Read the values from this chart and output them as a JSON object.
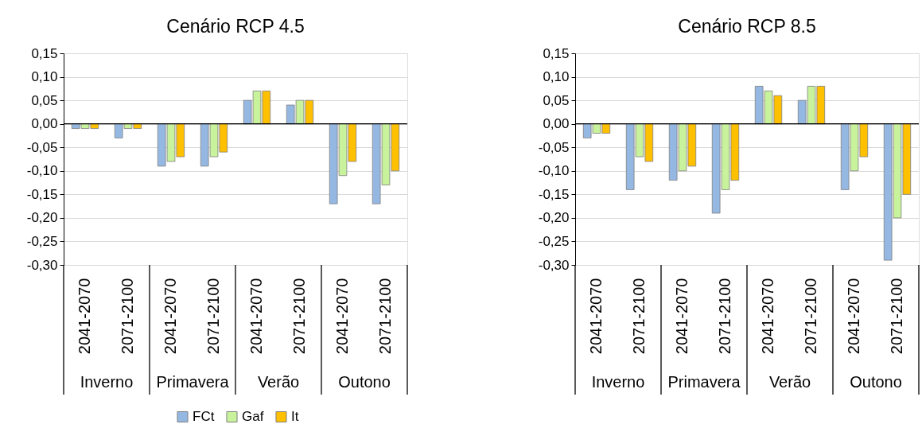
{
  "chart_data": [
    {
      "type": "bar",
      "title": "Cenário RCP 4.5",
      "categories": [
        "2041-2070",
        "2071-2100",
        "2041-2070",
        "2071-2100",
        "2041-2070",
        "2071-2100",
        "2041-2070",
        "2071-2100"
      ],
      "annotations": [
        "Inverno",
        "Primavera",
        "Verão",
        "Outono"
      ],
      "series": [
        {
          "name": "FCt",
          "color": "#95b8e2",
          "values": [
            -0.01,
            -0.03,
            -0.09,
            -0.09,
            0.05,
            0.04,
            -0.17,
            -0.17
          ]
        },
        {
          "name": "Gaf",
          "color": "#c8f29c",
          "values": [
            -0.01,
            -0.01,
            -0.08,
            -0.07,
            0.07,
            0.05,
            -0.11,
            -0.13
          ]
        },
        {
          "name": "It",
          "color": "#ffc000",
          "values": [
            -0.01,
            -0.01,
            -0.07,
            -0.06,
            0.07,
            0.05,
            -0.08,
            -0.1
          ]
        }
      ],
      "ylim": [
        -0.3,
        0.15
      ],
      "yticks": [
        {
          "value": 0.15,
          "label": "0,15"
        },
        {
          "value": 0.1,
          "label": "0,10"
        },
        {
          "value": 0.05,
          "label": "0,05"
        },
        {
          "value": 0,
          "label": "0,00"
        },
        {
          "value": -0.05,
          "label": "-0,05"
        },
        {
          "value": -0.1,
          "label": "-0,10"
        },
        {
          "value": -0.15,
          "label": "-0,15"
        },
        {
          "value": -0.2,
          "label": "-0,20"
        },
        {
          "value": -0.25,
          "label": "-0,25"
        },
        {
          "value": -0.3,
          "label": "-0,30"
        }
      ],
      "grid": "y",
      "legend": "bottom"
    },
    {
      "type": "bar",
      "title": "Cenário RCP 8.5",
      "categories": [
        "2041-2070",
        "2071-2100",
        "2041-2070",
        "2071-2100",
        "2041-2070",
        "2071-2100",
        "2041-2070",
        "2071-2100"
      ],
      "annotations": [
        "Inverno",
        "Primavera",
        "Verão",
        "Outono"
      ],
      "series": [
        {
          "name": "FCt",
          "color": "#95b8e2",
          "values": [
            -0.03,
            -0.14,
            -0.12,
            -0.19,
            0.08,
            0.05,
            -0.14,
            -0.29
          ]
        },
        {
          "name": "Gaf",
          "color": "#c8f29c",
          "values": [
            -0.02,
            -0.07,
            -0.1,
            -0.14,
            0.07,
            0.08,
            -0.1,
            -0.2
          ]
        },
        {
          "name": "It",
          "color": "#ffc000",
          "values": [
            -0.02,
            -0.08,
            -0.09,
            -0.12,
            0.06,
            0.08,
            -0.07,
            -0.15
          ]
        }
      ],
      "ylim": [
        -0.3,
        0.15
      ],
      "yticks": [
        {
          "value": 0.15,
          "label": "0,15"
        },
        {
          "value": 0.1,
          "label": "0,10"
        },
        {
          "value": 0.05,
          "label": "0,05"
        },
        {
          "value": 0,
          "label": "0,00"
        },
        {
          "value": -0.05,
          "label": "-0,05"
        },
        {
          "value": -0.1,
          "label": "-0,10"
        },
        {
          "value": -0.15,
          "label": "-0,15"
        },
        {
          "value": -0.2,
          "label": "-0,20"
        },
        {
          "value": -0.25,
          "label": "-0,25"
        },
        {
          "value": -0.3,
          "label": "-0,30"
        }
      ],
      "grid": "y",
      "legend": "bottom"
    }
  ]
}
